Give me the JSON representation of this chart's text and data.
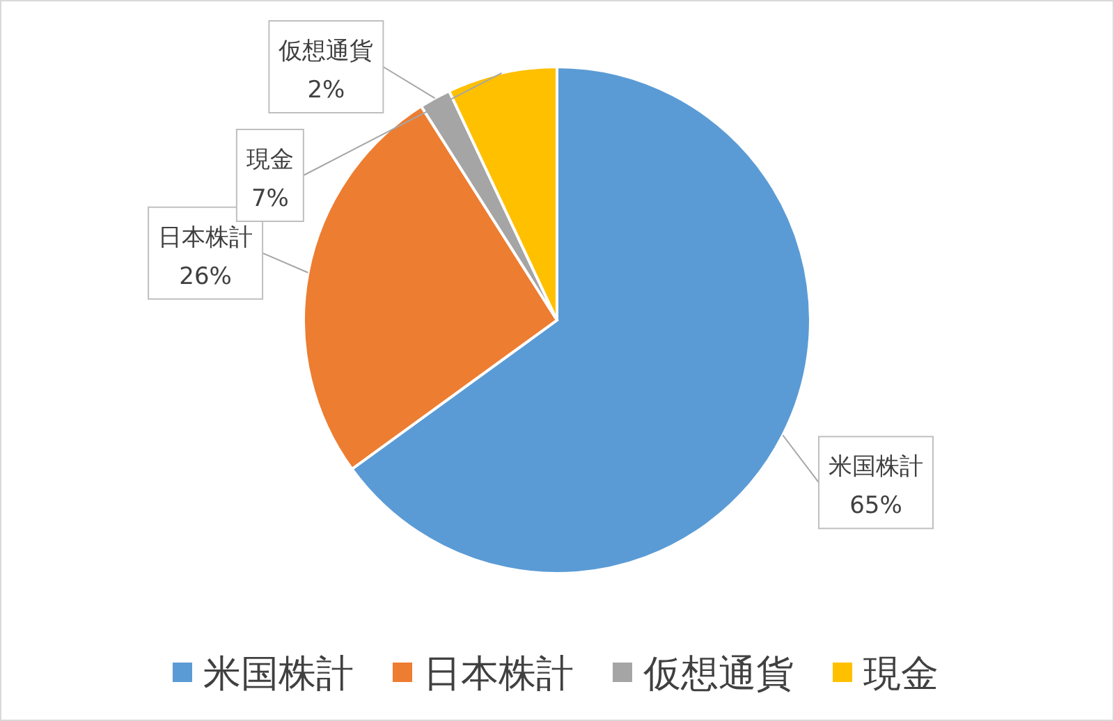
{
  "chart_data": {
    "type": "pie",
    "categories": [
      "米国株計",
      "日本株計",
      "仮想通貨",
      "現金"
    ],
    "values": [
      65,
      26,
      2,
      7
    ],
    "value_labels": [
      "65%",
      "26%",
      "2%",
      "7%"
    ],
    "colors": [
      "#5b9bd5",
      "#ed7d31",
      "#a5a5a5",
      "#ffc000"
    ],
    "legend": "bottom"
  }
}
